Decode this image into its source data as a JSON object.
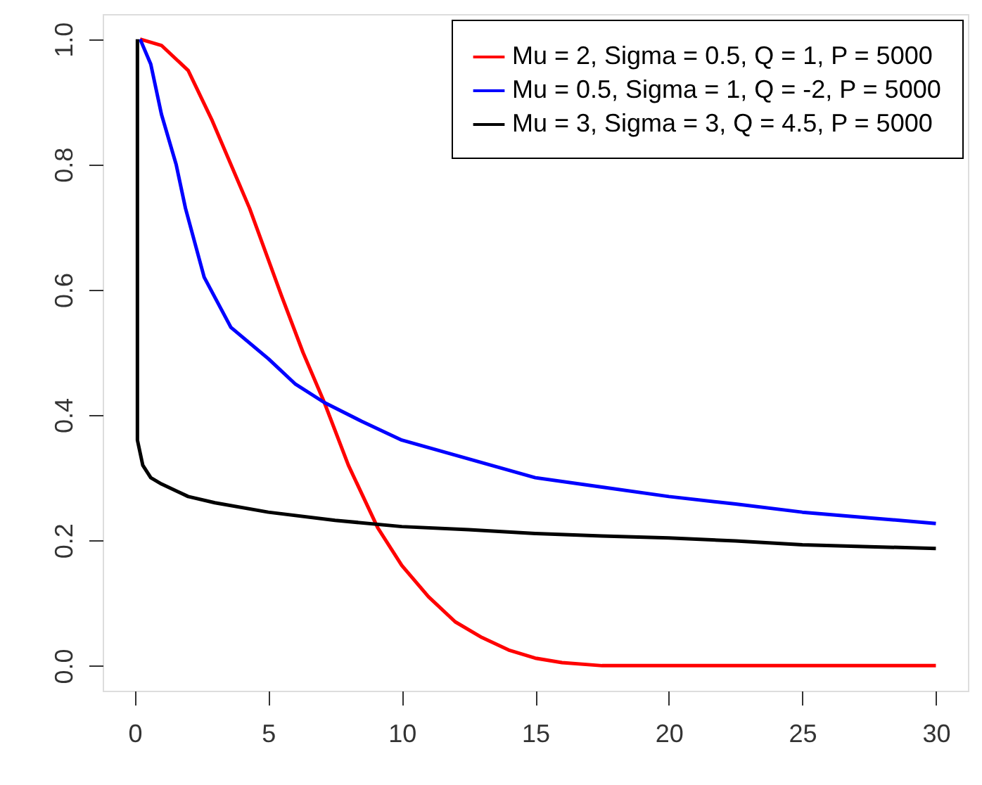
{
  "chart_data": {
    "type": "line",
    "xlim": [
      -1.2,
      31.2
    ],
    "ylim": [
      -0.04,
      1.04
    ],
    "xticks": [
      0,
      5,
      10,
      15,
      20,
      25,
      30
    ],
    "yticks": [
      {
        "value": 0,
        "label": "0.0"
      },
      0.2,
      0.4,
      0.6,
      0.8,
      {
        "value": 1,
        "label": "1.0"
      }
    ],
    "grid": false,
    "legend": "top right",
    "marker": "none",
    "line_style": "solid",
    "series": [
      {
        "name": "Mu = 2, Sigma = 0.5, Q = 1, P = 5000",
        "color": "#ff0000",
        "x": [
          0.2,
          1,
          2,
          2.9,
          4.3,
          5.5,
          6.3,
          7.1,
          8,
          9.1,
          10,
          11,
          12,
          13,
          14,
          15,
          16,
          17.5,
          20,
          25,
          30
        ],
        "values": [
          1,
          0.99,
          0.95,
          0.87,
          0.73,
          0.59,
          0.5,
          0.42,
          0.32,
          0.22,
          0.16,
          0.11,
          0.07,
          0.045,
          0.025,
          0.012,
          0.005,
          0.0,
          0.0,
          0.0,
          0.0
        ]
      },
      {
        "name": "Mu = 0.5, Sigma = 1, Q = -2, P = 5000",
        "color": "#0000ff",
        "x": [
          0.2,
          0.6,
          1,
          1.55,
          1.9,
          2.6,
          3.6,
          5,
          6,
          7.1,
          8.5,
          10,
          12.5,
          15,
          17.5,
          20,
          22.5,
          25,
          27.5,
          30
        ],
        "values": [
          1,
          0.96,
          0.88,
          0.8,
          0.73,
          0.62,
          0.54,
          0.49,
          0.45,
          0.42,
          0.39,
          0.36,
          0.33,
          0.3,
          0.285,
          0.27,
          0.258,
          0.245,
          0.236,
          0.227
        ]
      },
      {
        "name": "Mu = 3, Sigma = 3, Q = 4.5, P = 5000",
        "color": "#000000",
        "x": [
          0.1,
          0.1,
          0.3,
          0.6,
          1,
          2,
          3,
          5,
          7.5,
          10,
          12.5,
          15,
          17.5,
          20,
          22.5,
          25,
          27.5,
          30
        ],
        "values": [
          1,
          0.36,
          0.32,
          0.3,
          0.29,
          0.27,
          0.26,
          0.245,
          0.232,
          0.222,
          0.217,
          0.211,
          0.207,
          0.204,
          0.199,
          0.193,
          0.19,
          0.187
        ]
      }
    ]
  }
}
